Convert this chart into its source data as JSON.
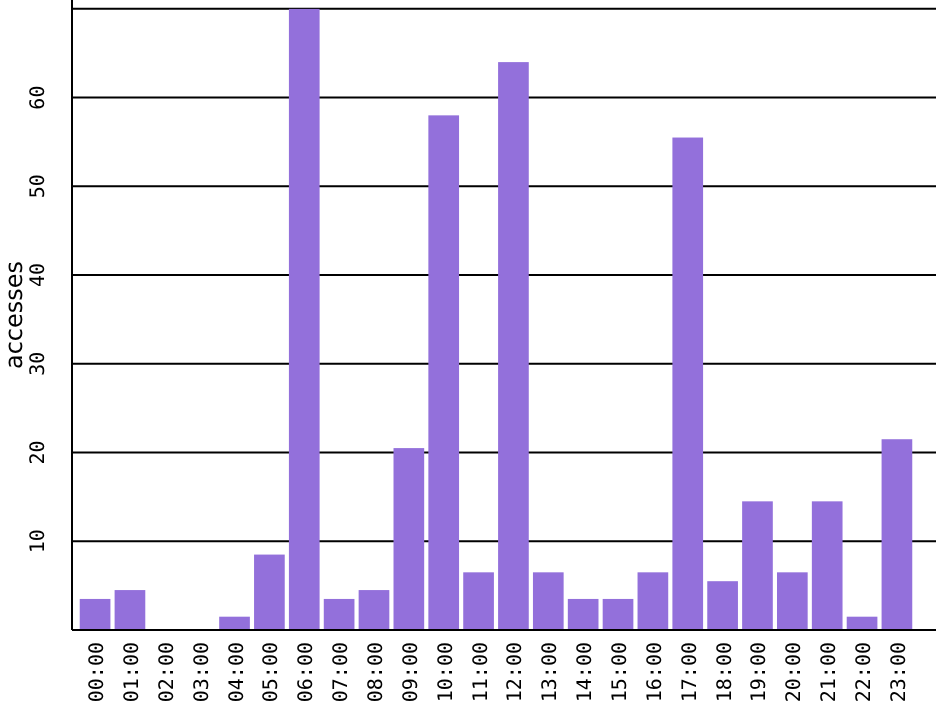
{
  "chart_data": {
    "type": "bar",
    "ylabel": "accesses",
    "categories": [
      "00:00",
      "01:00",
      "02:00",
      "03:00",
      "04:00",
      "05:00",
      "06:00",
      "07:00",
      "08:00",
      "09:00",
      "10:00",
      "11:00",
      "12:00",
      "13:00",
      "14:00",
      "15:00",
      "16:00",
      "17:00",
      "18:00",
      "19:00",
      "20:00",
      "21:00",
      "22:00",
      "23:00"
    ],
    "values": [
      3.5,
      4.5,
      0,
      0,
      1.5,
      8.5,
      70,
      3.5,
      4.5,
      20.5,
      58,
      6.5,
      64,
      6.5,
      3.5,
      3.5,
      6.5,
      55.5,
      5.5,
      14.5,
      6.5,
      14.5,
      1.5,
      21.5
    ],
    "color": "#9370db",
    "ylim": [
      0,
      71
    ],
    "yticks": [
      10,
      20,
      30,
      40,
      50,
      60,
      {
        "value": 70,
        "label": null
      }
    ],
    "grid": "y"
  }
}
